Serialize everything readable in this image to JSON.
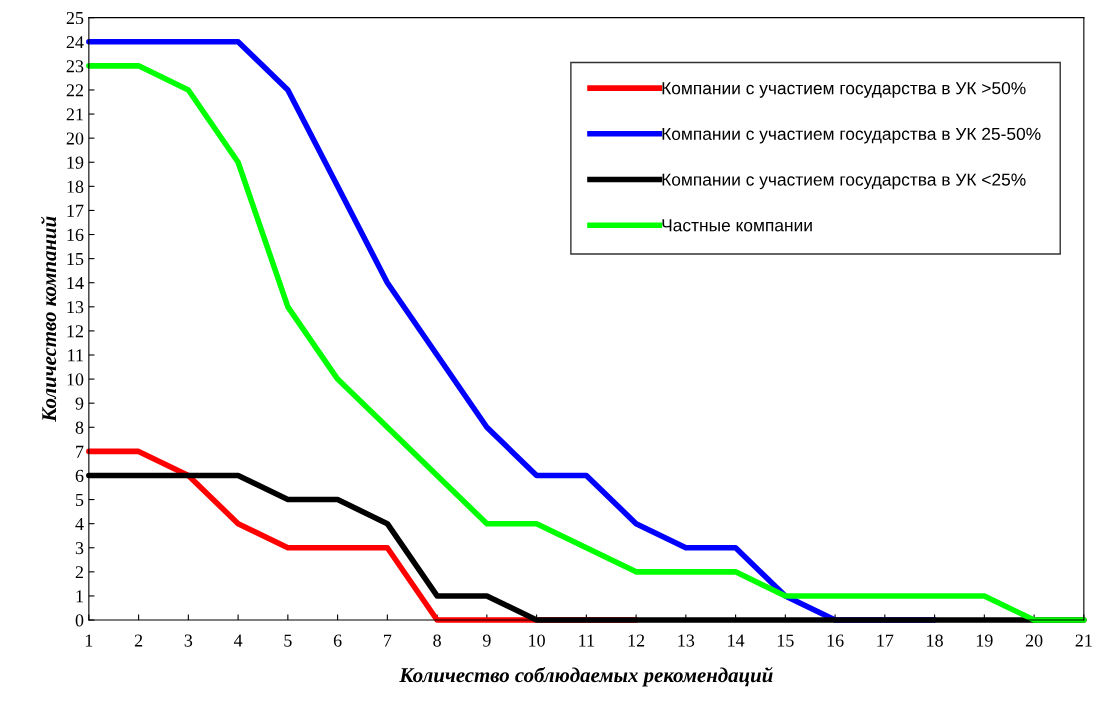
{
  "chart_data": {
    "type": "line",
    "xlabel": "Количество соблюдаемых рекомендаций",
    "ylabel": "Количество компаний",
    "x": [
      1,
      2,
      3,
      4,
      5,
      6,
      7,
      8,
      9,
      10,
      11,
      12,
      13,
      14,
      15,
      16,
      17,
      18,
      19,
      20,
      21
    ],
    "series": [
      {
        "name": "Компании с участием государства в УК >50%",
        "color": "#ff0000",
        "values": [
          7,
          7,
          6,
          4,
          3,
          3,
          3,
          0,
          0,
          0,
          0,
          0,
          null,
          null,
          null,
          null,
          null,
          null,
          null,
          null,
          null
        ]
      },
      {
        "name": "Компании с участием государства в УК 25-50%",
        "color": "#0000ff",
        "values": [
          24,
          24,
          24,
          24,
          22,
          18,
          14,
          11,
          8,
          6,
          6,
          4,
          3,
          3,
          1,
          0,
          0,
          0,
          null,
          null,
          null
        ]
      },
      {
        "name": "Компании с участием государства в УК <25%",
        "color": "#000000",
        "values": [
          6,
          6,
          6,
          6,
          5,
          5,
          4,
          1,
          1,
          0,
          0,
          0,
          0,
          0,
          0,
          0,
          0,
          0,
          0,
          0,
          0
        ]
      },
      {
        "name": "Частные компании",
        "color": "#00ff00",
        "values": [
          23,
          23,
          22,
          19,
          13,
          10,
          8,
          6,
          4,
          4,
          3,
          2,
          2,
          2,
          1,
          1,
          1,
          1,
          1,
          0,
          0
        ]
      }
    ],
    "xlim": [
      1,
      21
    ],
    "xticks": [
      1,
      2,
      3,
      4,
      5,
      6,
      7,
      8,
      9,
      10,
      11,
      12,
      13,
      14,
      15,
      16,
      17,
      18,
      19,
      20,
      21
    ],
    "ylim": [
      0,
      25
    ],
    "yticks": [
      0,
      1,
      2,
      3,
      4,
      5,
      6,
      7,
      8,
      9,
      10,
      11,
      12,
      13,
      14,
      15,
      16,
      17,
      18,
      19,
      20,
      21,
      22,
      23,
      24,
      25
    ],
    "grid": false,
    "legend": "top right",
    "marker": "none",
    "line_style": "solid"
  }
}
